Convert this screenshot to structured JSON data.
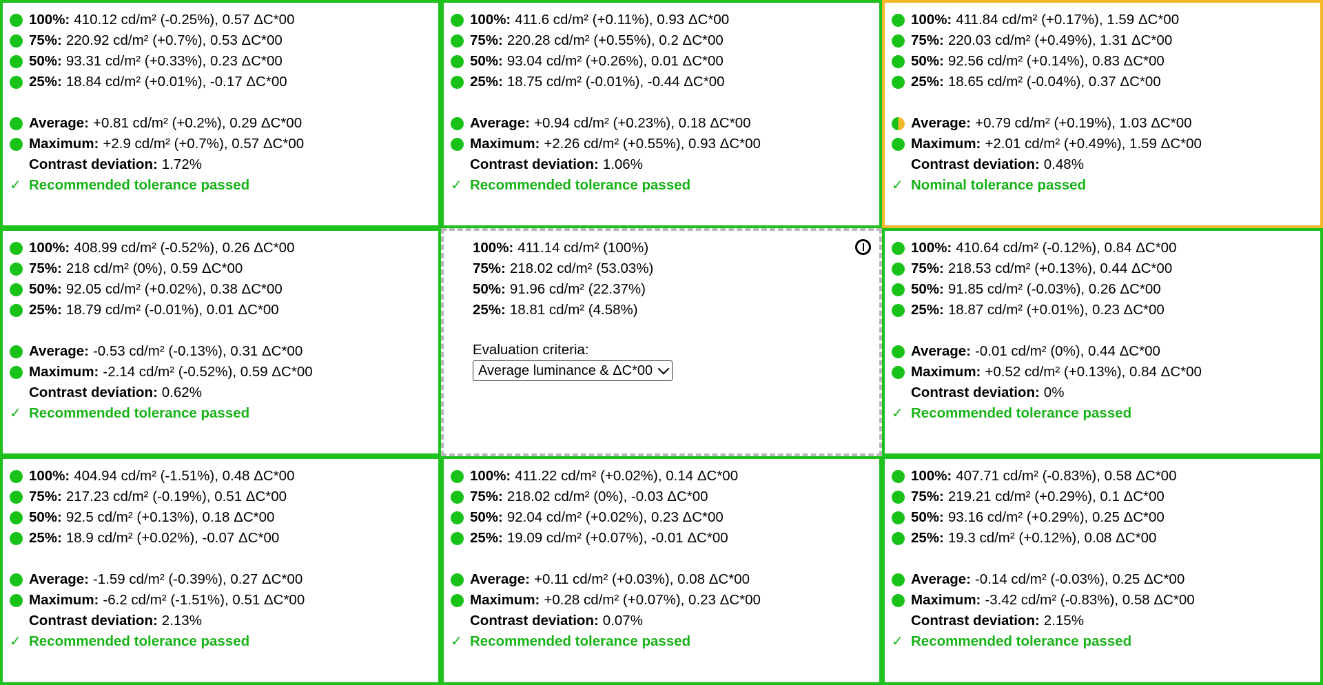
{
  "cells": [
    {
      "status": "ok",
      "rows": [
        {
          "label": "100%:",
          "value": "410.12 cd/m² (-0.25%), 0.57 ΔC*00"
        },
        {
          "label": "75%:",
          "value": "220.92 cd/m² (+0.7%), 0.53 ΔC*00"
        },
        {
          "label": "50%:",
          "value": "93.31 cd/m² (+0.33%), 0.23 ΔC*00"
        },
        {
          "label": "25%:",
          "value": "18.84 cd/m² (+0.01%), -0.17 ΔC*00"
        }
      ],
      "average": {
        "label": "Average:",
        "value": "+0.81 cd/m² (+0.2%), 0.29 ΔC*00"
      },
      "maximum": {
        "label": "Maximum:",
        "value": "+2.9 cd/m² (+0.7%), 0.57 ΔC*00"
      },
      "contrast": {
        "label": "Contrast deviation:",
        "value": "1.72%"
      },
      "result": "Recommended tolerance passed"
    },
    {
      "status": "ok",
      "rows": [
        {
          "label": "100%:",
          "value": "411.6 cd/m² (+0.11%), 0.93 ΔC*00"
        },
        {
          "label": "75%:",
          "value": "220.28 cd/m² (+0.55%), 0.2 ΔC*00"
        },
        {
          "label": "50%:",
          "value": "93.04 cd/m² (+0.26%), 0.01 ΔC*00"
        },
        {
          "label": "25%:",
          "value": "18.75 cd/m² (-0.01%), -0.44 ΔC*00"
        }
      ],
      "average": {
        "label": "Average:",
        "value": "+0.94 cd/m² (+0.23%), 0.18 ΔC*00"
      },
      "maximum": {
        "label": "Maximum:",
        "value": "+2.26 cd/m² (+0.55%), 0.93 ΔC*00"
      },
      "contrast": {
        "label": "Contrast deviation:",
        "value": "1.06%"
      },
      "result": "Recommended tolerance passed"
    },
    {
      "status": "warn",
      "rows": [
        {
          "label": "100%:",
          "value": "411.84 cd/m² (+0.17%), 1.59 ΔC*00"
        },
        {
          "label": "75%:",
          "value": "220.03 cd/m² (+0.49%), 1.31 ΔC*00"
        },
        {
          "label": "50%:",
          "value": "92.56 cd/m² (+0.14%), 0.83 ΔC*00"
        },
        {
          "label": "25%:",
          "value": "18.65 cd/m² (-0.04%), 0.37 ΔC*00"
        }
      ],
      "average": {
        "label": "Average:",
        "value": "+0.79 cd/m² (+0.19%), 1.03 ΔC*00"
      },
      "maximum": {
        "label": "Maximum:",
        "value": "+2.01 cd/m² (+0.49%), 1.59 ΔC*00"
      },
      "contrast": {
        "label": "Contrast deviation:",
        "value": "0.48%"
      },
      "result": "Nominal tolerance passed"
    },
    {
      "status": "ok",
      "rows": [
        {
          "label": "100%:",
          "value": "408.99 cd/m² (-0.52%), 0.26 ΔC*00"
        },
        {
          "label": "75%:",
          "value": "218 cd/m² (0%), 0.59 ΔC*00"
        },
        {
          "label": "50%:",
          "value": "92.05 cd/m² (+0.02%), 0.38 ΔC*00"
        },
        {
          "label": "25%:",
          "value": "18.79 cd/m² (-0.01%), 0.01 ΔC*00"
        }
      ],
      "average": {
        "label": "Average:",
        "value": "-0.53 cd/m² (-0.13%), 0.31 ΔC*00"
      },
      "maximum": {
        "label": "Maximum:",
        "value": "-2.14 cd/m² (-0.52%), 0.59 ΔC*00"
      },
      "contrast": {
        "label": "Contrast deviation:",
        "value": "0.62%"
      },
      "result": "Recommended tolerance passed"
    },
    {
      "status": "reference",
      "rows": [
        {
          "label": "100%:",
          "value": "411.14 cd/m² (100%)"
        },
        {
          "label": "75%:",
          "value": "218.02 cd/m² (53.03%)"
        },
        {
          "label": "50%:",
          "value": "91.96 cd/m² (22.37%)"
        },
        {
          "label": "25%:",
          "value": "18.81 cd/m² (4.58%)"
        }
      ],
      "criteria_label": "Evaluation criteria:",
      "criteria_value": "Average luminance & ΔC*00"
    },
    {
      "status": "ok",
      "rows": [
        {
          "label": "100%:",
          "value": "410.64 cd/m² (-0.12%), 0.84 ΔC*00"
        },
        {
          "label": "75%:",
          "value": "218.53 cd/m² (+0.13%), 0.44 ΔC*00"
        },
        {
          "label": "50%:",
          "value": "91.85 cd/m² (-0.03%), 0.26 ΔC*00"
        },
        {
          "label": "25%:",
          "value": "18.87 cd/m² (+0.01%), 0.23 ΔC*00"
        }
      ],
      "average": {
        "label": "Average:",
        "value": "-0.01 cd/m² (0%), 0.44 ΔC*00"
      },
      "maximum": {
        "label": "Maximum:",
        "value": "+0.52 cd/m² (+0.13%), 0.84 ΔC*00"
      },
      "contrast": {
        "label": "Contrast deviation:",
        "value": "0%"
      },
      "result": "Recommended tolerance passed"
    },
    {
      "status": "ok",
      "rows": [
        {
          "label": "100%:",
          "value": "404.94 cd/m² (-1.51%), 0.48 ΔC*00"
        },
        {
          "label": "75%:",
          "value": "217.23 cd/m² (-0.19%), 0.51 ΔC*00"
        },
        {
          "label": "50%:",
          "value": "92.5 cd/m² (+0.13%), 0.18 ΔC*00"
        },
        {
          "label": "25%:",
          "value": "18.9 cd/m² (+0.02%), -0.07 ΔC*00"
        }
      ],
      "average": {
        "label": "Average:",
        "value": "-1.59 cd/m² (-0.39%), 0.27 ΔC*00"
      },
      "maximum": {
        "label": "Maximum:",
        "value": "-6.2 cd/m² (-1.51%), 0.51 ΔC*00"
      },
      "contrast": {
        "label": "Contrast deviation:",
        "value": "2.13%"
      },
      "result": "Recommended tolerance passed"
    },
    {
      "status": "ok",
      "rows": [
        {
          "label": "100%:",
          "value": "411.22 cd/m² (+0.02%), 0.14 ΔC*00"
        },
        {
          "label": "75%:",
          "value": "218.02 cd/m² (0%), -0.03 ΔC*00"
        },
        {
          "label": "50%:",
          "value": "92.04 cd/m² (+0.02%), 0.23 ΔC*00"
        },
        {
          "label": "25%:",
          "value": "19.09 cd/m² (+0.07%), -0.01 ΔC*00"
        }
      ],
      "average": {
        "label": "Average:",
        "value": "+0.11 cd/m² (+0.03%), 0.08 ΔC*00"
      },
      "maximum": {
        "label": "Maximum:",
        "value": "+0.28 cd/m² (+0.07%), 0.23 ΔC*00"
      },
      "contrast": {
        "label": "Contrast deviation:",
        "value": "0.07%"
      },
      "result": "Recommended tolerance passed"
    },
    {
      "status": "ok",
      "rows": [
        {
          "label": "100%:",
          "value": "407.71 cd/m² (-0.83%), 0.58 ΔC*00"
        },
        {
          "label": "75%:",
          "value": "219.21 cd/m² (+0.29%), 0.1 ΔC*00"
        },
        {
          "label": "50%:",
          "value": "93.16 cd/m² (+0.29%), 0.25 ΔC*00"
        },
        {
          "label": "25%:",
          "value": "19.3 cd/m² (+0.12%), 0.08 ΔC*00"
        }
      ],
      "average": {
        "label": "Average:",
        "value": "-0.14 cd/m² (-0.03%), 0.25 ΔC*00"
      },
      "maximum": {
        "label": "Maximum:",
        "value": "-3.42 cd/m² (-0.83%), 0.58 ΔC*00"
      },
      "contrast": {
        "label": "Contrast deviation:",
        "value": "2.15%"
      },
      "result": "Recommended tolerance passed"
    }
  ],
  "check_mark": "✓",
  "icons": {
    "ok_dot": "green-status-dot-icon",
    "half_dot": "half-green-orange-status-dot-icon",
    "info": "info-icon",
    "check": "checkmark-icon"
  },
  "colors": {
    "ok": "#1ec11e",
    "warn": "#f5b826",
    "pass_text": "#16b216",
    "reference_border": "#b8b8b8"
  }
}
